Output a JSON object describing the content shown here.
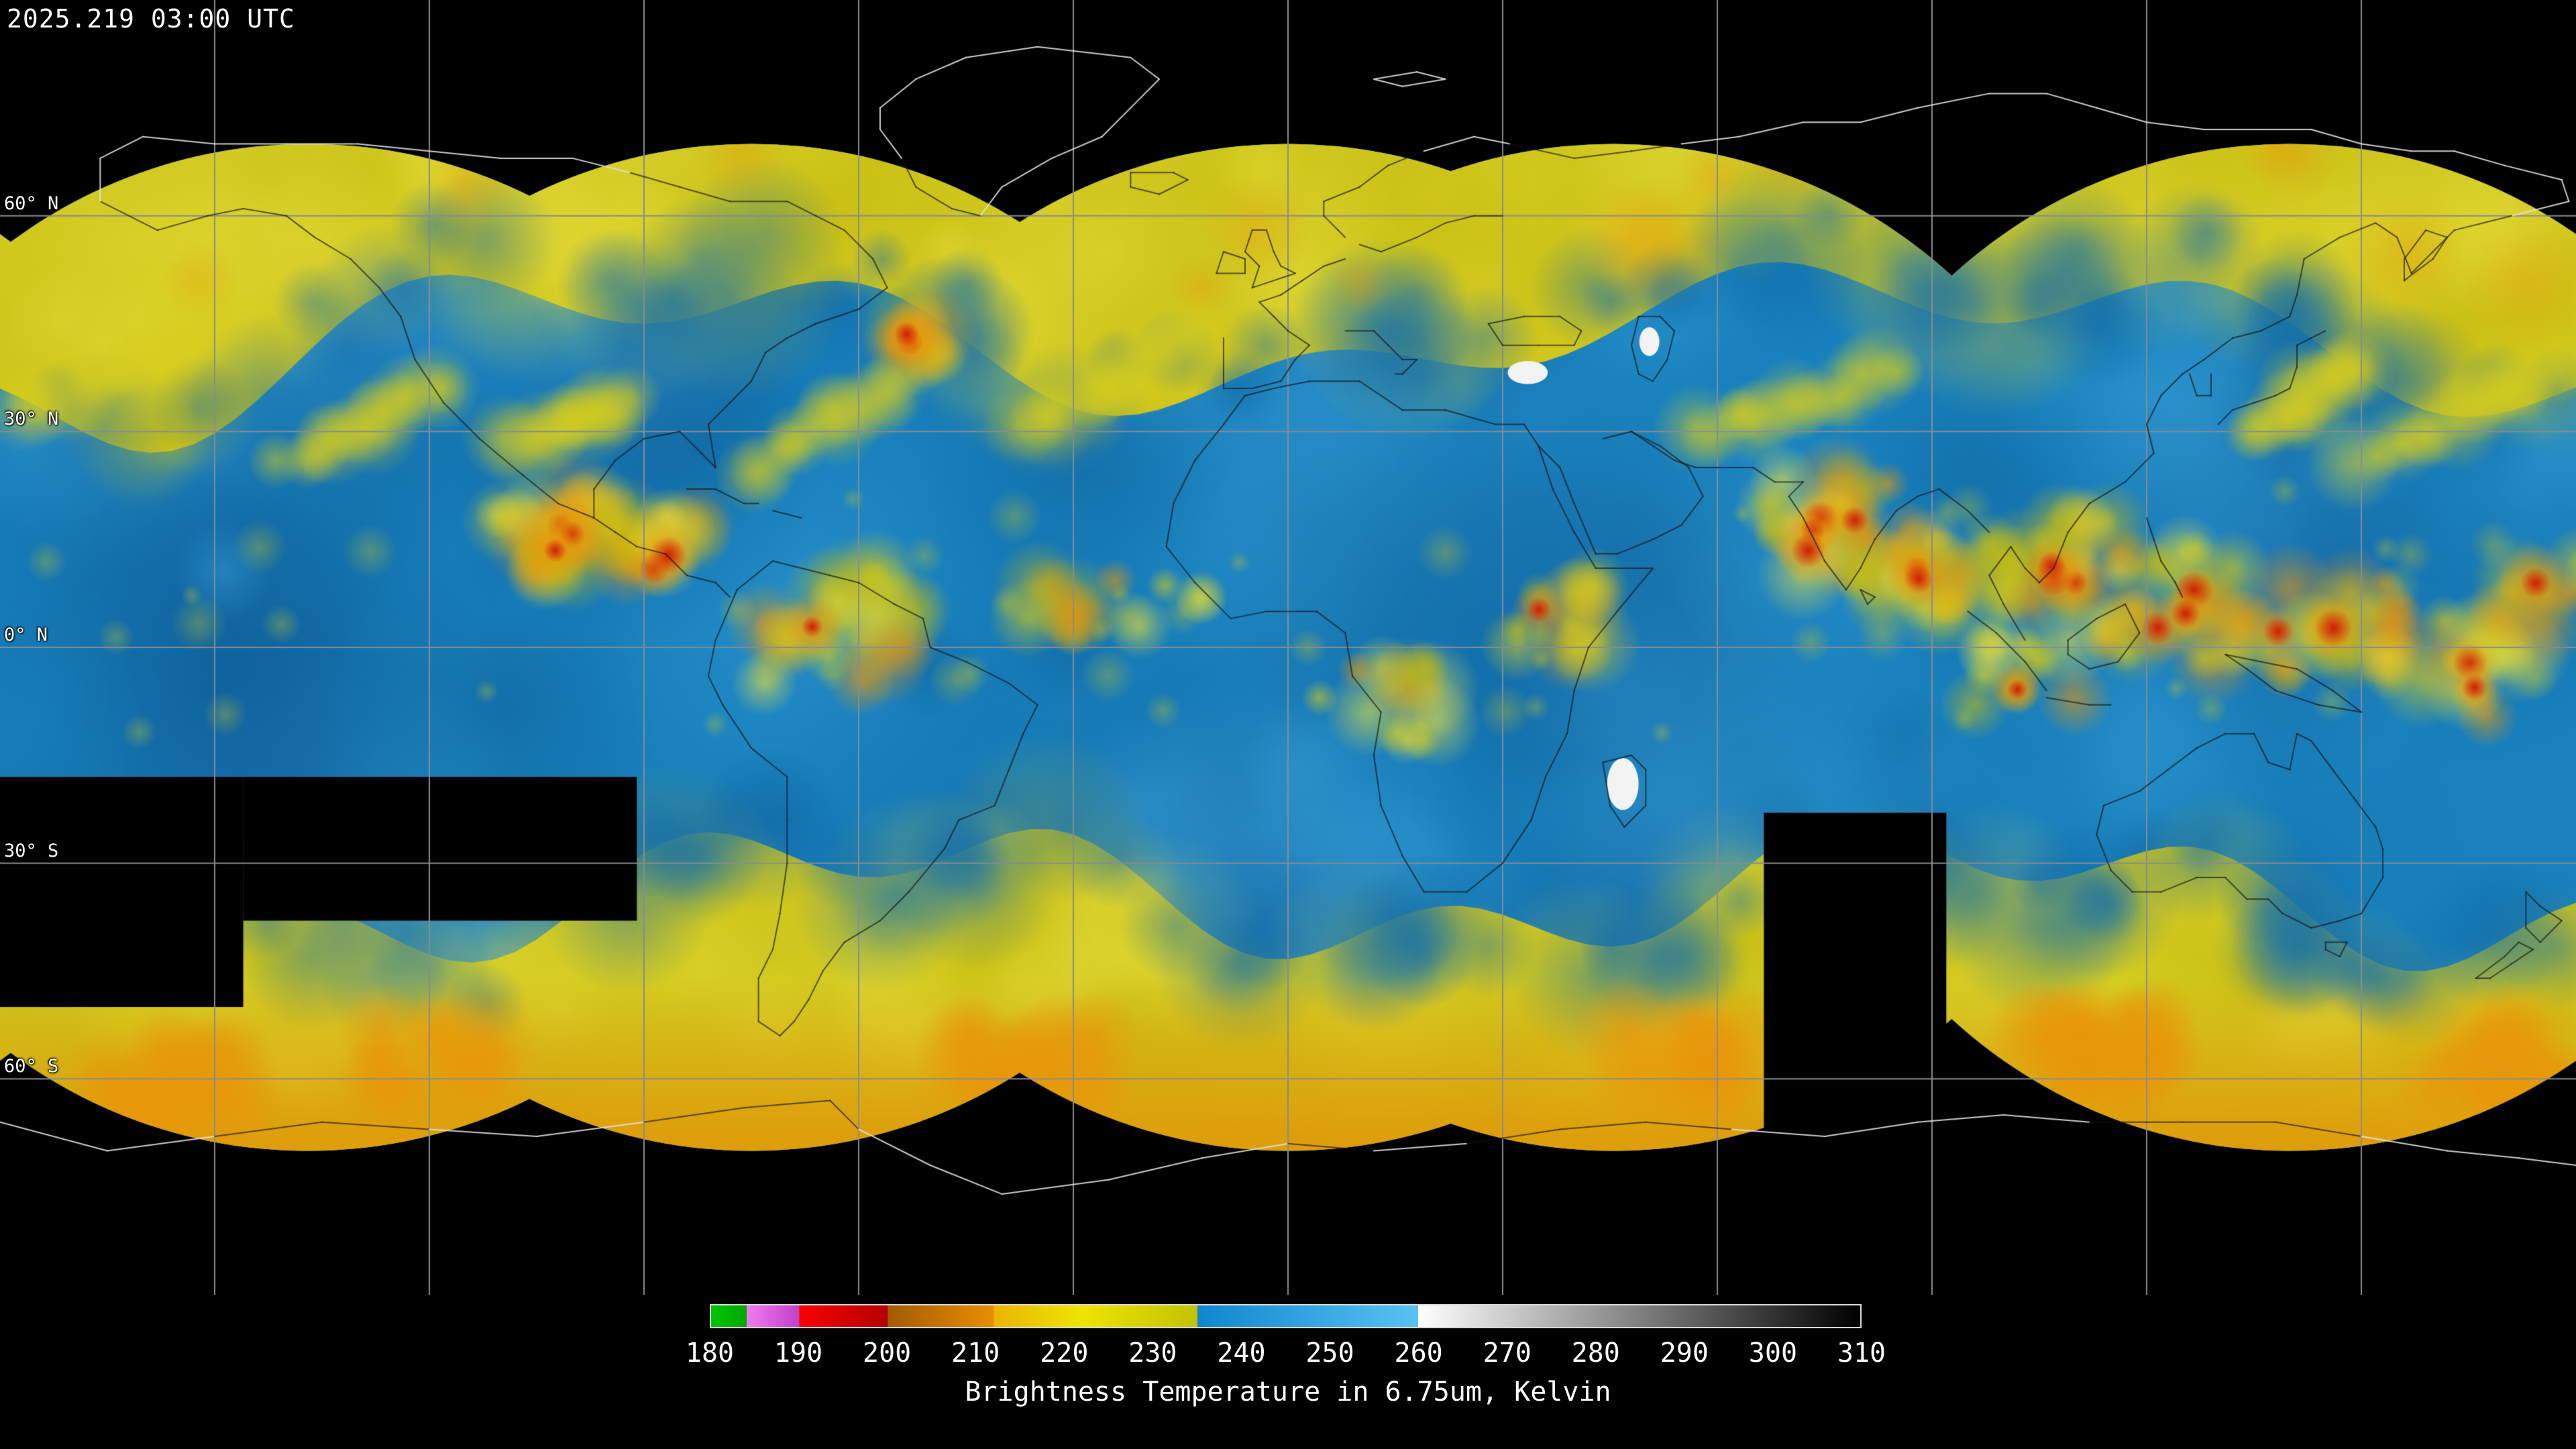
{
  "header": {
    "timestamp": "2025.219 03:00 UTC"
  },
  "map": {
    "extent": {
      "lon_min": -180,
      "lon_max": 180,
      "lat_min": -90,
      "lat_max": 90
    },
    "grid": {
      "lon_step_deg": 30,
      "lat_step_deg": 30,
      "color": "#868c90"
    },
    "lat_labels": [
      {
        "label": "60° N",
        "lat": 60
      },
      {
        "label": "30° N",
        "lat": 30
      },
      {
        "label": "0° N",
        "lat": 0
      },
      {
        "label": "30° S",
        "lat": -30
      },
      {
        "label": "60° S",
        "lat": -60
      }
    ],
    "render": {
      "satellite_lons": [
        -137,
        -75,
        0,
        45.5,
        140
      ],
      "disc_radius_deg": 70,
      "missing_sectors": [
        {
          "lon": [
            -180,
            -146
          ],
          "lat": [
            -18,
            -50
          ]
        },
        {
          "lon": [
            -146,
            -91
          ],
          "lat": [
            -18,
            -38
          ]
        },
        {
          "lon": [
            66.5,
            92
          ],
          "lat": [
            -23,
            -70
          ]
        }
      ],
      "white_patches": [
        {
          "lon": 33.5,
          "lat": 38.2,
          "rx": 2.8,
          "ry": 1.6
        },
        {
          "lon": 50.5,
          "lat": 42.5,
          "rx": 1.4,
          "ry": 2.0
        },
        {
          "lon": 46.8,
          "lat": -19.0,
          "rx": 2.2,
          "ry": 3.6
        }
      ]
    }
  },
  "colorbar": {
    "title": "Brightness Temperature in 6.75um, Kelvin",
    "units": "Kelvin",
    "min": 180,
    "max": 310,
    "ticks": [
      180,
      190,
      200,
      210,
      220,
      230,
      240,
      250,
      260,
      270,
      280,
      290,
      300,
      310
    ],
    "segments": [
      {
        "from": 180,
        "to": 184,
        "start": "#00c400",
        "end": "#00a800"
      },
      {
        "from": 184,
        "to": 190,
        "start": "#f07cf0",
        "end": "#c040c8"
      },
      {
        "from": 190,
        "to": 200,
        "start": "#f80000",
        "end": "#b40000"
      },
      {
        "from": 200,
        "to": 212,
        "start": "#a35a00",
        "end": "#e88f00"
      },
      {
        "from": 212,
        "to": 222,
        "start": "#eab600",
        "end": "#eee400"
      },
      {
        "from": 222,
        "to": 235,
        "start": "#eee400",
        "end": "#c2c200"
      },
      {
        "from": 235,
        "to": 260,
        "start": "#0f86cf",
        "end": "#59c2f2"
      },
      {
        "from": 260,
        "to": 310,
        "start": "#ffffff",
        "end": "#000000"
      }
    ]
  },
  "palette": {
    "background": "#000000",
    "base_moisture_blue": "#1881bd",
    "cloud_yellow": "#cfc61e",
    "cold_orange": "#e89606",
    "coldest_red": "#ce1c08",
    "coast_on_black": "#e0e0e0",
    "coast_on_data": "#101010",
    "text": "#ffffff"
  }
}
